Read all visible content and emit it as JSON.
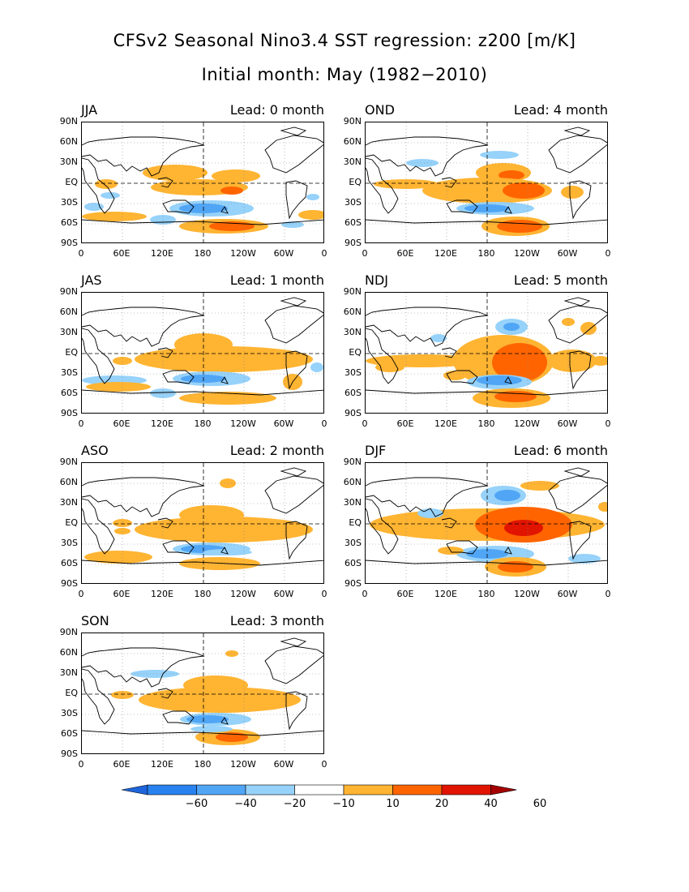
{
  "title_line1": "CFSv2 Seasonal Nino3.4 SST regression: z200 [m/K]",
  "title_line2": "Initial month: May (1982−2010)",
  "lat_labels": [
    "90N",
    "60N",
    "30N",
    "EQ",
    "30S",
    "60S",
    "90S"
  ],
  "lon_labels": [
    "0",
    "60E",
    "120E",
    "180",
    "120W",
    "60W",
    "0"
  ],
  "panels": [
    {
      "season": "JJA",
      "lead": "Lead: 0 month"
    },
    {
      "season": "OND",
      "lead": "Lead: 4 month"
    },
    {
      "season": "JAS",
      "lead": "Lead: 1 month"
    },
    {
      "season": "NDJ",
      "lead": "Lead: 5 month"
    },
    {
      "season": "ASO",
      "lead": "Lead: 2 month"
    },
    {
      "season": "DJF",
      "lead": "Lead: 6 month"
    },
    {
      "season": "SON",
      "lead": "Lead: 3 month"
    }
  ],
  "colorbar": {
    "labels": [
      "−60",
      "−40",
      "−20",
      "−10",
      "10",
      "20",
      "40",
      "60"
    ],
    "colors": [
      "#1e64dc",
      "#2882f0",
      "#50a5f5",
      "#96d2fa",
      "#ffffff",
      "#ffb432",
      "#ff6400",
      "#e11400",
      "#a50000"
    ]
  }
}
